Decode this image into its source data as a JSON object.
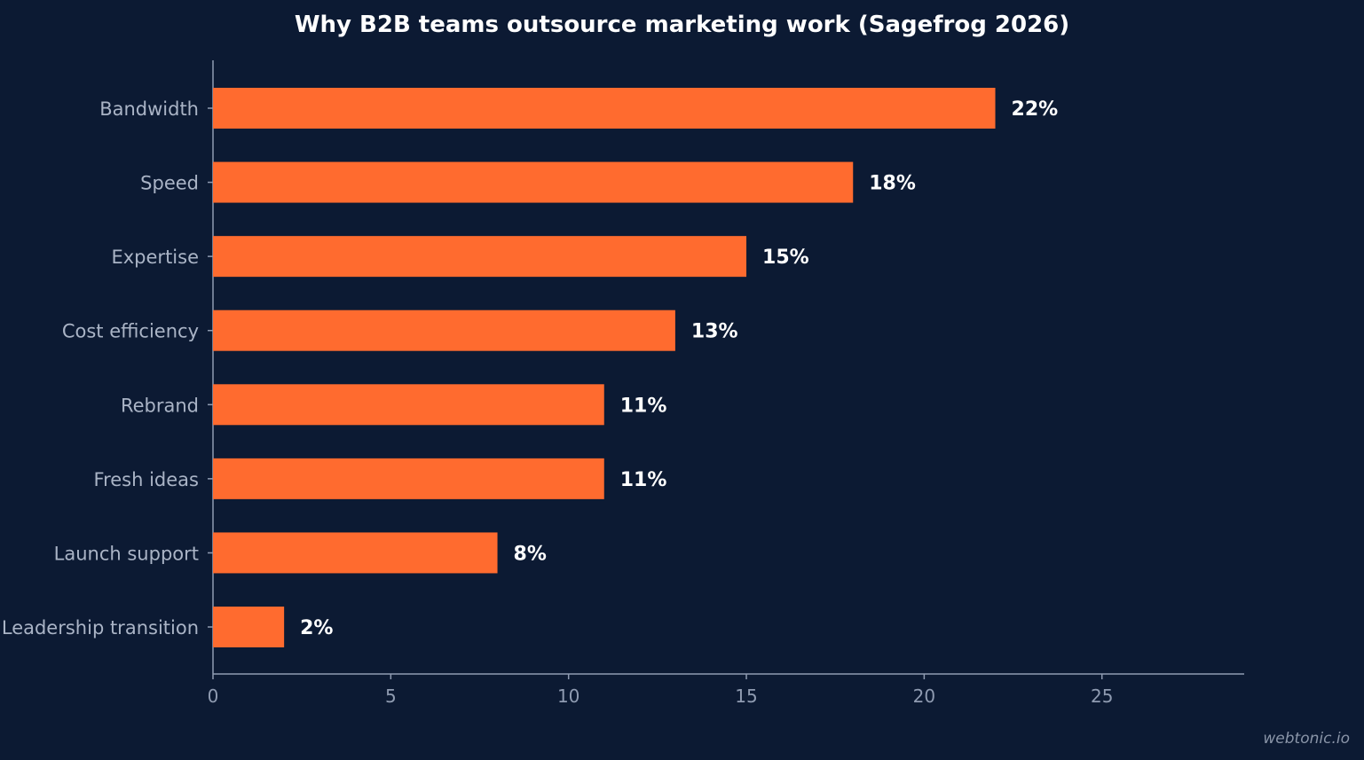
{
  "chart_data": {
    "type": "bar",
    "orientation": "horizontal",
    "title": "Why B2B teams outsource marketing work (Sagefrog 2026)",
    "xlabel": "",
    "ylabel": "",
    "categories": [
      "Bandwidth",
      "Speed",
      "Expertise",
      "Cost efficiency",
      "Rebrand",
      "Fresh ideas",
      "Launch support",
      "Leadership transition"
    ],
    "values": [
      22,
      18,
      15,
      13,
      11,
      11,
      8,
      2
    ],
    "value_labels": [
      "22%",
      "18%",
      "15%",
      "13%",
      "11%",
      "11%",
      "8%",
      "2%"
    ],
    "xlim": [
      0,
      29
    ],
    "xticks": [
      0,
      5,
      10,
      15,
      20,
      25
    ],
    "grid": false,
    "bar_color": "#ff6b2f"
  },
  "colors": {
    "background": "#0c1a33",
    "bar": "#ff6b2f",
    "axis": "#8f9bb1"
  },
  "watermark": "webtonic.io"
}
